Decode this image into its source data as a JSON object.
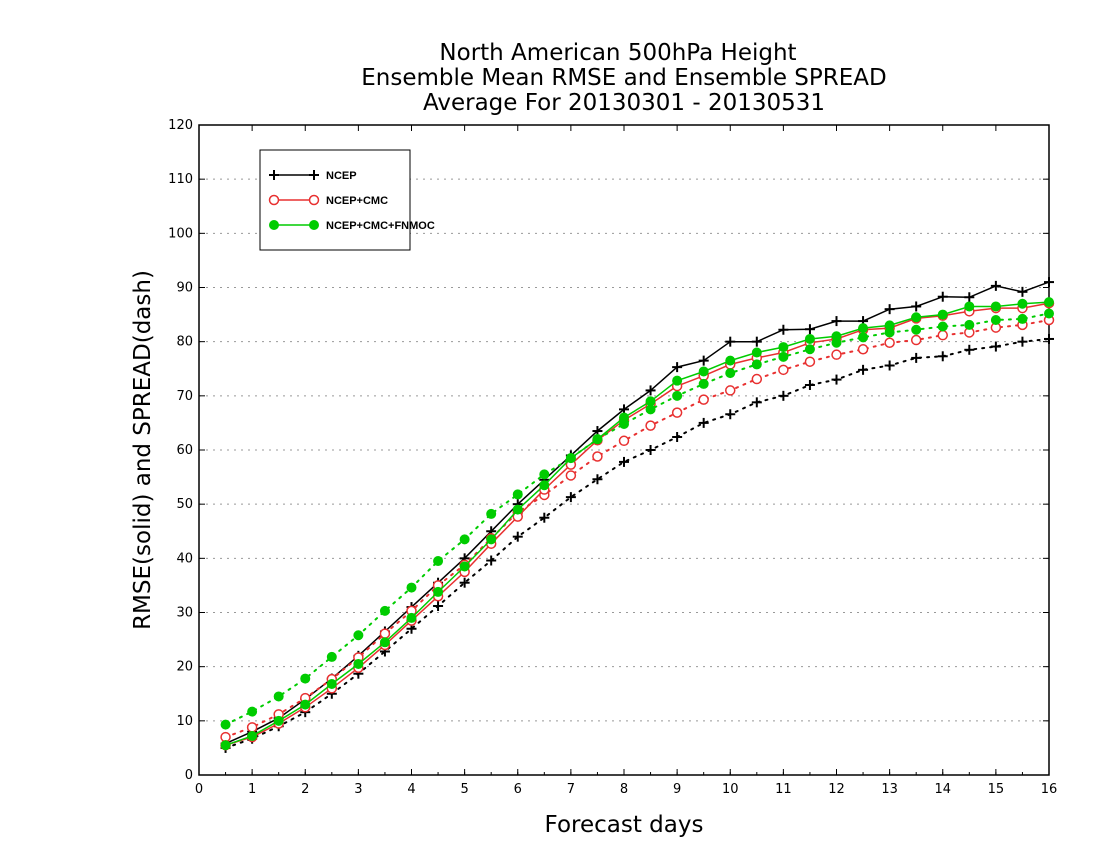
{
  "chart_data": {
    "type": "line",
    "title_lines": [
      "North American 500hPa Height",
      "Ensemble Mean RMSE and Ensemble SPREAD",
      "Average For 20130301 - 20130531"
    ],
    "xlabel": "Forecast days",
    "ylabel": "RMSE(solid) and SPREAD(dash)",
    "xlim": [
      0,
      16
    ],
    "ylim": [
      0,
      120
    ],
    "xticks": [
      0,
      1,
      2,
      3,
      4,
      5,
      6,
      7,
      8,
      9,
      10,
      11,
      12,
      13,
      14,
      15,
      16
    ],
    "yticks": [
      0,
      10,
      20,
      30,
      40,
      50,
      60,
      70,
      80,
      90,
      100,
      110,
      120
    ],
    "grid": "horizontal-dotted",
    "legend_position": "top-left",
    "x": [
      0.5,
      1,
      1.5,
      2,
      2.5,
      3,
      3.5,
      4,
      4.5,
      5,
      5.5,
      6,
      6.5,
      7,
      7.5,
      8,
      8.5,
      9,
      9.5,
      10,
      10.5,
      11,
      11.5,
      12,
      12.5,
      13,
      13.5,
      14,
      14.5,
      15,
      15.5,
      16
    ],
    "series": [
      {
        "name": "NCEP",
        "color": "#000000",
        "marker": "plus",
        "rmse": [
          5.8,
          8.0,
          10.5,
          14.0,
          17.8,
          22.0,
          26.5,
          31.0,
          35.5,
          40.0,
          45.0,
          50.0,
          54.5,
          59.0,
          63.5,
          67.5,
          71.0,
          75.3,
          76.5,
          80.0,
          80.0,
          82.2,
          82.3,
          83.8,
          83.8,
          86.0,
          86.5,
          88.3,
          88.2,
          90.3,
          89.2,
          91.0
        ],
        "spread": [
          5.0,
          6.7,
          9.0,
          11.6,
          15.0,
          18.7,
          22.8,
          27.0,
          31.2,
          35.5,
          39.6,
          44.0,
          47.5,
          51.3,
          54.6,
          57.8,
          60.0,
          62.4,
          65.0,
          66.6,
          68.8,
          70.0,
          72.0,
          73.0,
          74.8,
          75.6,
          77.0,
          77.3,
          78.5,
          79.1,
          80.0,
          80.5
        ]
      },
      {
        "name": "NCEP+CMC",
        "color": "#e83030",
        "marker": "open-circle",
        "rmse": [
          5.5,
          7.0,
          9.5,
          12.5,
          16.0,
          19.8,
          24.0,
          28.5,
          33.0,
          37.5,
          42.7,
          47.7,
          52.7,
          57.3,
          61.8,
          65.5,
          68.5,
          71.8,
          73.7,
          75.8,
          77.0,
          78.0,
          79.8,
          80.5,
          82.2,
          82.5,
          84.3,
          84.8,
          85.6,
          86.2,
          86.2,
          87.1
        ],
        "spread": [
          7.0,
          8.8,
          11.2,
          14.2,
          17.7,
          21.7,
          26.1,
          30.3,
          35.0,
          38.8,
          43.7,
          48.5,
          51.7,
          55.3,
          58.8,
          61.7,
          64.5,
          66.9,
          69.3,
          71.0,
          73.1,
          74.8,
          76.3,
          77.6,
          78.6,
          79.8,
          80.3,
          81.2,
          81.7,
          82.6,
          83.1,
          84.0
        ]
      },
      {
        "name": "NCEP+CMC+FNMOC",
        "color": "#00cc00",
        "marker": "filled-circle",
        "rmse": [
          5.5,
          7.2,
          10.0,
          13.0,
          16.8,
          20.5,
          24.5,
          29.0,
          33.8,
          38.5,
          43.5,
          49.0,
          53.5,
          58.5,
          62.0,
          66.0,
          69.0,
          72.8,
          74.5,
          76.5,
          78.0,
          79.0,
          80.5,
          81.0,
          82.5,
          83.0,
          84.5,
          85.0,
          86.5,
          86.5,
          87.0,
          87.3
        ],
        "spread": [
          9.3,
          11.7,
          14.5,
          17.8,
          21.8,
          25.8,
          30.3,
          34.6,
          39.5,
          43.5,
          48.2,
          51.8,
          55.5,
          58.5,
          62.0,
          64.8,
          67.5,
          70.0,
          72.2,
          74.2,
          75.8,
          77.2,
          78.6,
          79.8,
          80.8,
          81.7,
          82.2,
          82.8,
          83.1,
          84.0,
          84.2,
          85.2
        ]
      }
    ]
  }
}
